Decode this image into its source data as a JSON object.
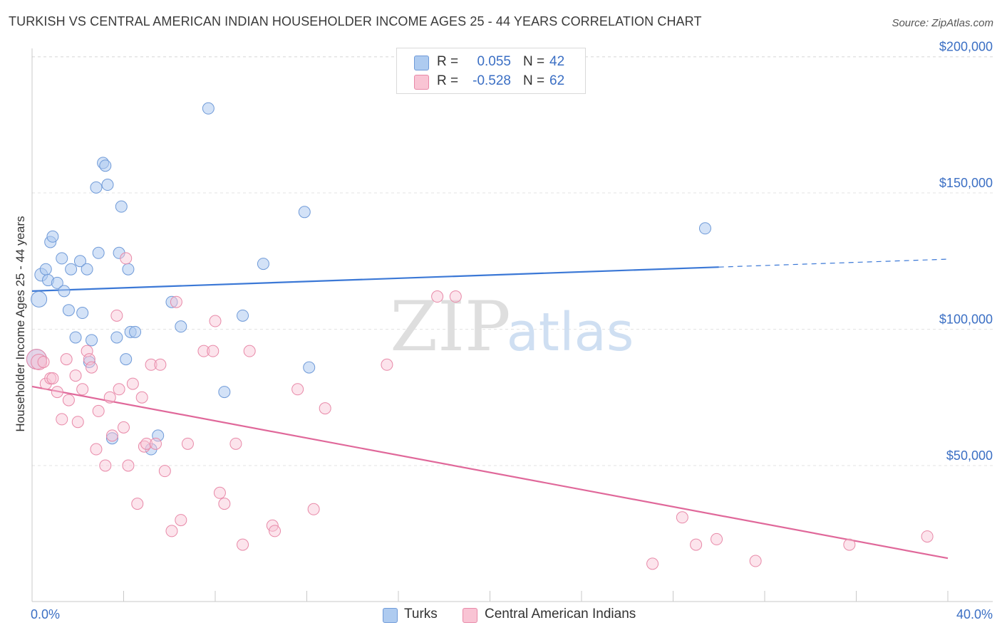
{
  "header": {
    "title": "TURKISH VS CENTRAL AMERICAN INDIAN HOUSEHOLDER INCOME AGES 25 - 44 YEARS CORRELATION CHART",
    "source": "Source: ZipAtlas.com"
  },
  "watermark": {
    "zip": "ZIP",
    "atlas": "atlas"
  },
  "legend": {
    "rows": [
      {
        "r_label": "R =",
        "r_value": "0.055",
        "n_label": "N =",
        "n_value": "42",
        "color": "#aecbf0",
        "border": "#6f9ad8"
      },
      {
        "r_label": "R =",
        "r_value": "-0.528",
        "n_label": "N =",
        "n_value": "62",
        "color": "#f9c4d4",
        "border": "#e889a8"
      }
    ]
  },
  "bottom_legend": {
    "items": [
      {
        "label": "Turks",
        "color": "#aecbf0",
        "border": "#6f9ad8"
      },
      {
        "label": "Central American Indians",
        "color": "#f9c4d4",
        "border": "#e889a8"
      }
    ]
  },
  "chart_data": {
    "type": "scatter",
    "title": "TURKISH VS CENTRAL AMERICAN INDIAN HOUSEHOLDER INCOME AGES 25 - 44 YEARS CORRELATION CHART",
    "xlabel": "",
    "ylabel": "Householder Income Ages 25 - 44 years",
    "xlim": [
      0,
      40
    ],
    "ylim": [
      0,
      210000
    ],
    "x_tick_labels": [
      "0.0%",
      "40.0%"
    ],
    "y_ticks": [
      50000,
      100000,
      150000,
      200000
    ],
    "y_tick_labels": [
      "$50,000",
      "$100,000",
      "$150,000",
      "$200,000"
    ],
    "grid": true,
    "legend_position": "top-center",
    "colors": {
      "turks": "#3b78d6",
      "cai": "#e0689a"
    },
    "series": [
      {
        "name": "Turks",
        "trend": {
          "x": [
            0,
            30,
            40
          ],
          "y": [
            114000,
            122800,
            125700
          ],
          "dashed_from": 30
        },
        "points": [
          [
            0.2,
            89000,
            26
          ],
          [
            0.3,
            111000,
            20
          ],
          [
            0.4,
            120000,
            16
          ],
          [
            0.6,
            122000,
            14
          ],
          [
            0.7,
            118000,
            14
          ],
          [
            0.8,
            132000,
            14
          ],
          [
            0.9,
            134000,
            14
          ],
          [
            1.1,
            117000,
            14
          ],
          [
            1.3,
            126000,
            14
          ],
          [
            1.4,
            114000,
            14
          ],
          [
            1.6,
            107000,
            14
          ],
          [
            1.7,
            122000,
            14
          ],
          [
            1.9,
            97000,
            14
          ],
          [
            2.1,
            125000,
            14
          ],
          [
            2.2,
            106000,
            14
          ],
          [
            2.4,
            122000,
            14
          ],
          [
            2.5,
            88000,
            14
          ],
          [
            2.6,
            96000,
            14
          ],
          [
            2.8,
            152000,
            14
          ],
          [
            2.9,
            128000,
            14
          ],
          [
            3.1,
            161000,
            14
          ],
          [
            3.2,
            160000,
            14
          ],
          [
            3.3,
            153000,
            14
          ],
          [
            3.5,
            60000,
            14
          ],
          [
            3.7,
            97000,
            14
          ],
          [
            3.8,
            128000,
            14
          ],
          [
            3.9,
            145000,
            14
          ],
          [
            4.1,
            89000,
            14
          ],
          [
            4.2,
            122000,
            14
          ],
          [
            4.3,
            99000,
            14
          ],
          [
            4.5,
            99000,
            14
          ],
          [
            5.2,
            56000,
            14
          ],
          [
            5.5,
            61000,
            14
          ],
          [
            6.1,
            110000,
            14
          ],
          [
            6.5,
            101000,
            14
          ],
          [
            7.7,
            181000,
            14
          ],
          [
            8.4,
            77000,
            14
          ],
          [
            9.2,
            105000,
            14
          ],
          [
            10.1,
            124000,
            14
          ],
          [
            11.9,
            143000,
            14
          ],
          [
            12.1,
            86000,
            14
          ],
          [
            29.4,
            137000,
            14
          ]
        ]
      },
      {
        "name": "Central American Indians",
        "trend": {
          "x": [
            0,
            40
          ],
          "y": [
            79000,
            16000
          ]
        },
        "points": [
          [
            0.2,
            89000,
            26
          ],
          [
            0.3,
            88000,
            20
          ],
          [
            0.5,
            88000,
            14
          ],
          [
            0.6,
            80000,
            14
          ],
          [
            0.8,
            82000,
            14
          ],
          [
            0.9,
            82000,
            14
          ],
          [
            1.1,
            77000,
            14
          ],
          [
            1.3,
            67000,
            14
          ],
          [
            1.5,
            89000,
            14
          ],
          [
            1.6,
            74000,
            14
          ],
          [
            1.9,
            83000,
            14
          ],
          [
            2.0,
            66000,
            14
          ],
          [
            2.2,
            78000,
            14
          ],
          [
            2.4,
            92000,
            14
          ],
          [
            2.5,
            89000,
            14
          ],
          [
            2.6,
            86000,
            14
          ],
          [
            2.8,
            56000,
            14
          ],
          [
            2.9,
            70000,
            14
          ],
          [
            3.2,
            50000,
            14
          ],
          [
            3.4,
            75000,
            14
          ],
          [
            3.5,
            61000,
            14
          ],
          [
            3.7,
            105000,
            14
          ],
          [
            3.8,
            78000,
            14
          ],
          [
            4.0,
            64000,
            14
          ],
          [
            4.1,
            126000,
            14
          ],
          [
            4.2,
            50000,
            14
          ],
          [
            4.4,
            80000,
            14
          ],
          [
            4.6,
            36000,
            14
          ],
          [
            4.8,
            75000,
            14
          ],
          [
            4.9,
            57000,
            14
          ],
          [
            5.0,
            58000,
            14
          ],
          [
            5.2,
            87000,
            14
          ],
          [
            5.4,
            58000,
            14
          ],
          [
            5.6,
            87000,
            14
          ],
          [
            5.8,
            48000,
            14
          ],
          [
            6.1,
            26000,
            14
          ],
          [
            6.3,
            110000,
            14
          ],
          [
            6.5,
            30000,
            14
          ],
          [
            6.8,
            58000,
            14
          ],
          [
            7.5,
            92000,
            14
          ],
          [
            7.9,
            92000,
            14
          ],
          [
            8.0,
            103000,
            14
          ],
          [
            8.2,
            40000,
            14
          ],
          [
            8.4,
            36000,
            14
          ],
          [
            8.9,
            58000,
            14
          ],
          [
            9.2,
            21000,
            14
          ],
          [
            9.5,
            92000,
            14
          ],
          [
            10.5,
            28000,
            14
          ],
          [
            10.6,
            26000,
            14
          ],
          [
            11.6,
            78000,
            14
          ],
          [
            12.3,
            34000,
            14
          ],
          [
            12.8,
            71000,
            14
          ],
          [
            15.5,
            87000,
            14
          ],
          [
            17.7,
            112000,
            14
          ],
          [
            18.5,
            112000,
            14
          ],
          [
            28.4,
            31000,
            14
          ],
          [
            29.0,
            21000,
            14
          ],
          [
            29.9,
            23000,
            14
          ],
          [
            27.1,
            14000,
            14
          ],
          [
            31.6,
            15000,
            14
          ],
          [
            35.7,
            21000,
            14
          ],
          [
            39.1,
            24000,
            14
          ]
        ]
      }
    ]
  }
}
